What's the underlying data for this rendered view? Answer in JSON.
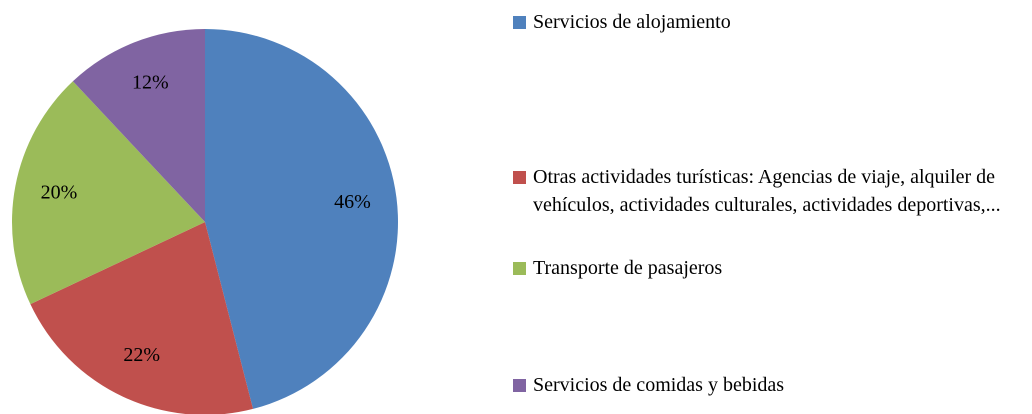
{
  "chart_data": {
    "type": "pie",
    "categories": [
      "Servicios de alojamiento",
      "Otras actividades turísticas: Agencias de viaje, alquiler de vehículos, actividades culturales, actividades deportivas,...",
      "Transporte de pasajeros",
      "Servicios de comidas y bebidas"
    ],
    "values": [
      46,
      22,
      20,
      12
    ],
    "value_labels": [
      "46%",
      "22%",
      "20%",
      "12%"
    ],
    "colors": [
      "#4f81bd",
      "#c0504d",
      "#9bbb59",
      "#8064a2"
    ],
    "legend": "right"
  }
}
